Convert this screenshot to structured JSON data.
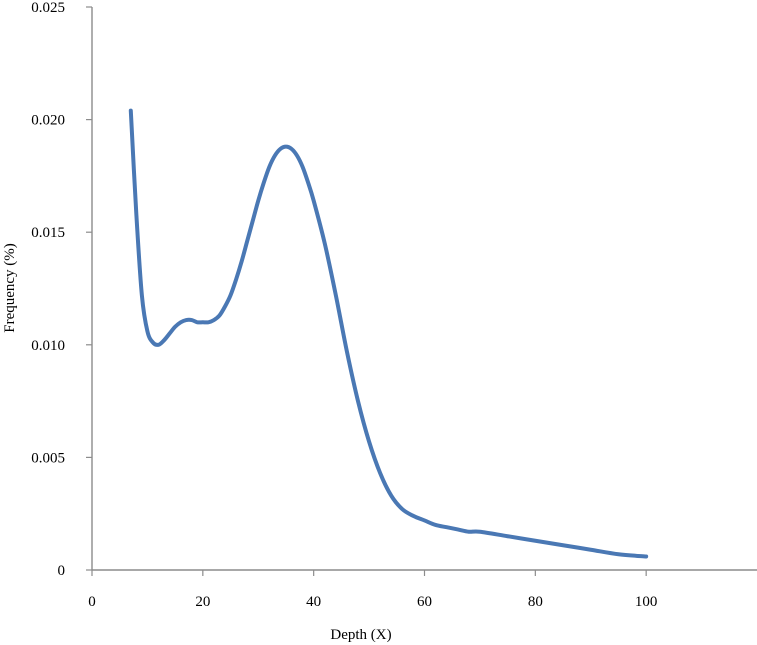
{
  "chart_data": {
    "type": "line",
    "title": "",
    "xlabel": "Depth (X)",
    "ylabel": "Frequency (%)",
    "xlim": [
      0,
      120
    ],
    "ylim": [
      0,
      0.025
    ],
    "x_ticks": [
      0,
      20,
      40,
      60,
      80,
      100
    ],
    "x_tick_labels": [
      "0",
      "20",
      "40",
      "60",
      "80",
      "100"
    ],
    "y_ticks": [
      0,
      0.005,
      0.01,
      0.015,
      0.02,
      0.025
    ],
    "y_tick_labels": [
      "0",
      "0.005",
      "0.010",
      "0.015",
      "0.020",
      "0.025"
    ],
    "grid": false,
    "series": [
      {
        "color": "#4a78b4",
        "x": [
          7,
          8,
          9,
          10,
          11,
          12,
          13,
          14,
          15,
          16,
          17,
          18,
          19,
          20,
          21,
          22,
          23,
          24,
          25,
          26,
          27,
          28,
          29,
          30,
          31,
          32,
          33,
          34,
          35,
          36,
          37,
          38,
          39,
          40,
          42,
          44,
          46,
          48,
          50,
          52,
          54,
          56,
          58,
          60,
          62,
          64,
          66,
          68,
          70,
          75,
          80,
          85,
          90,
          95,
          100
        ],
        "y": [
          0.0204,
          0.0158,
          0.0122,
          0.0106,
          0.0101,
          0.01,
          0.0102,
          0.0105,
          0.0108,
          0.011,
          0.0111,
          0.0111,
          0.011,
          0.011,
          0.011,
          0.0111,
          0.0113,
          0.0117,
          0.0122,
          0.0129,
          0.0137,
          0.0146,
          0.0155,
          0.0164,
          0.0172,
          0.0179,
          0.0184,
          0.0187,
          0.0188,
          0.0187,
          0.0184,
          0.0179,
          0.0172,
          0.0164,
          0.0145,
          0.0122,
          0.0097,
          0.0075,
          0.0057,
          0.0043,
          0.0033,
          0.0027,
          0.0024,
          0.0022,
          0.002,
          0.0019,
          0.0018,
          0.0017,
          0.0017,
          0.0015,
          0.0013,
          0.0011,
          0.0009,
          0.0007,
          0.0006
        ]
      }
    ]
  }
}
